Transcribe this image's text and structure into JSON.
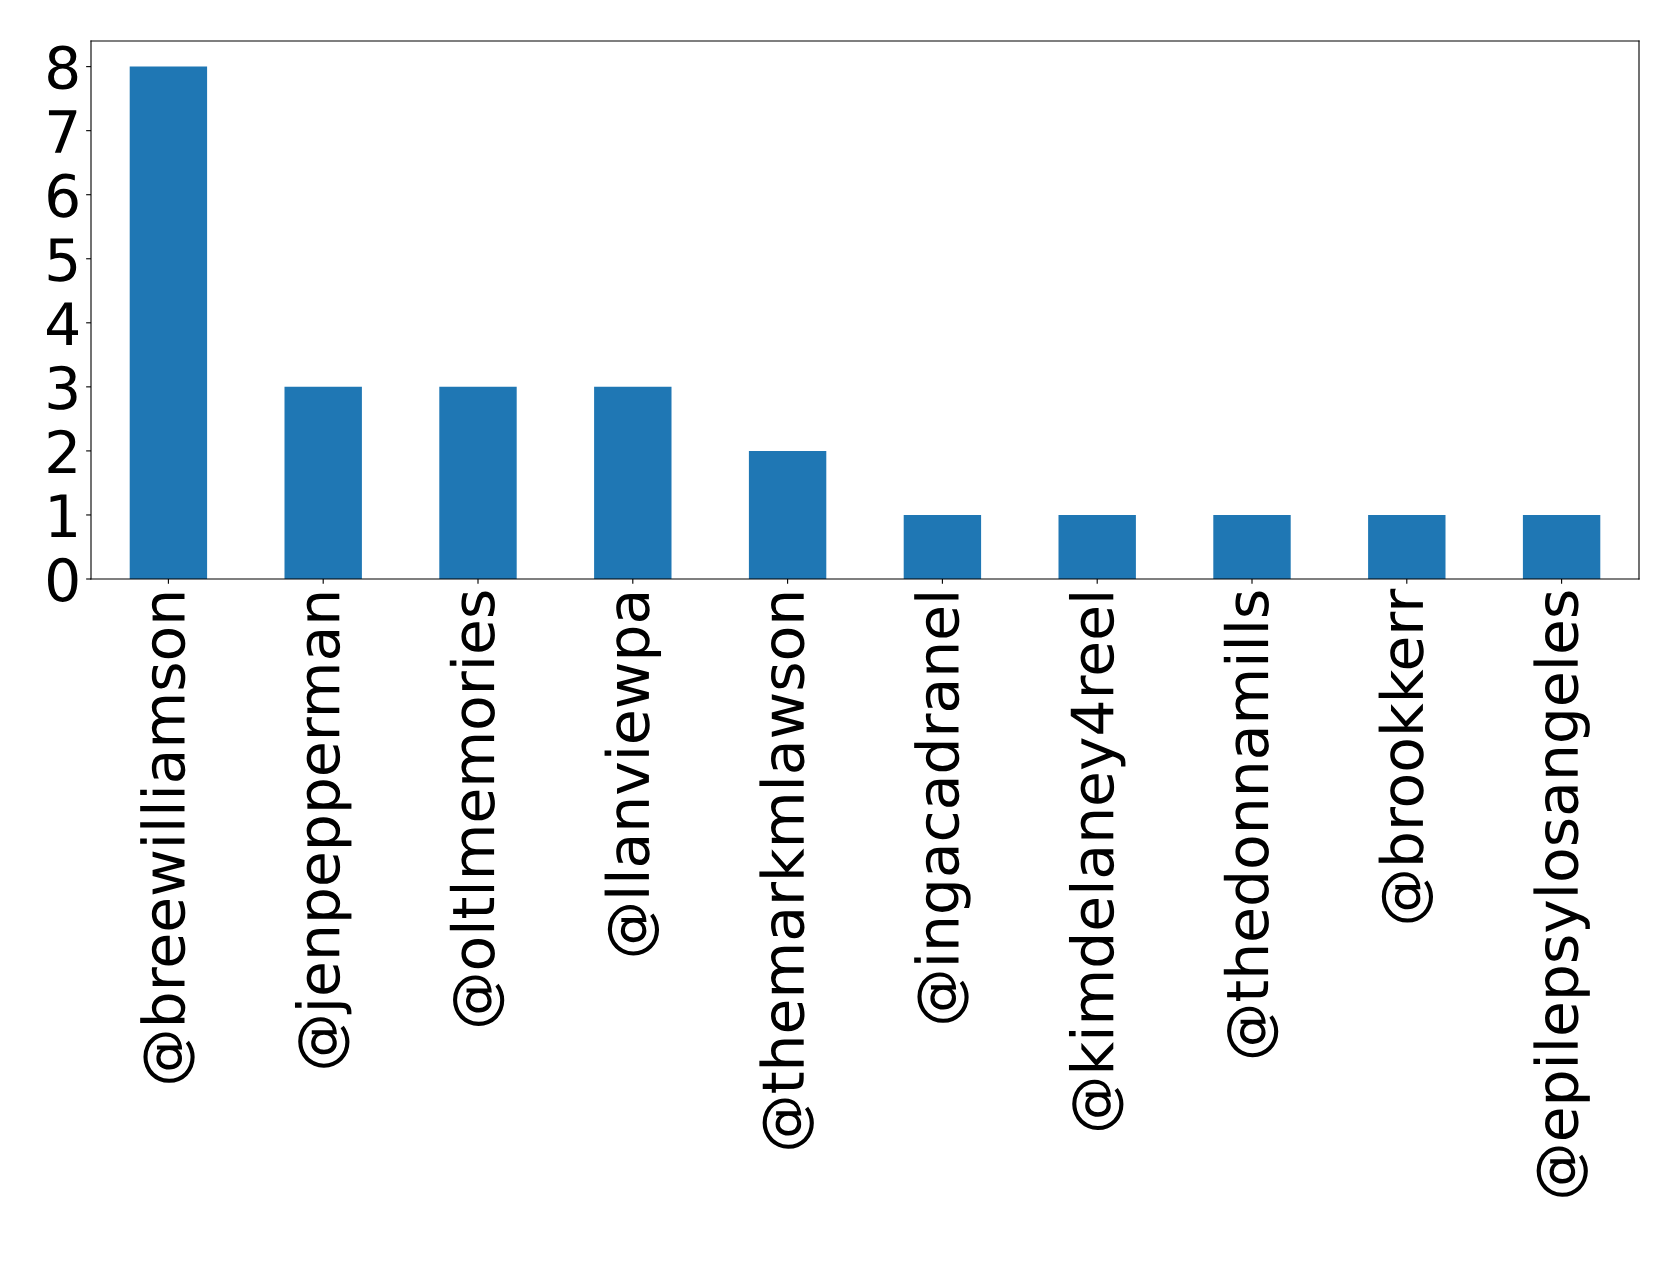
{
  "chart_data": {
    "type": "bar",
    "categories": [
      "@breewilliamson",
      "@jenpepperman",
      "@oltlmemories",
      "@llanviewpa",
      "@themarkmlawson",
      "@ingacadranel",
      "@kimdelaney4reel",
      "@thedonnamills",
      "@brookkerr",
      "@epilepsylosangeles"
    ],
    "values": [
      8,
      3,
      3,
      3,
      2,
      1,
      1,
      1,
      1,
      1
    ],
    "color": "#1f77b4",
    "ylim": [
      0,
      8.4
    ],
    "yticks": [
      0,
      1,
      2,
      3,
      4,
      5,
      6,
      7,
      8
    ],
    "grid": false
  }
}
